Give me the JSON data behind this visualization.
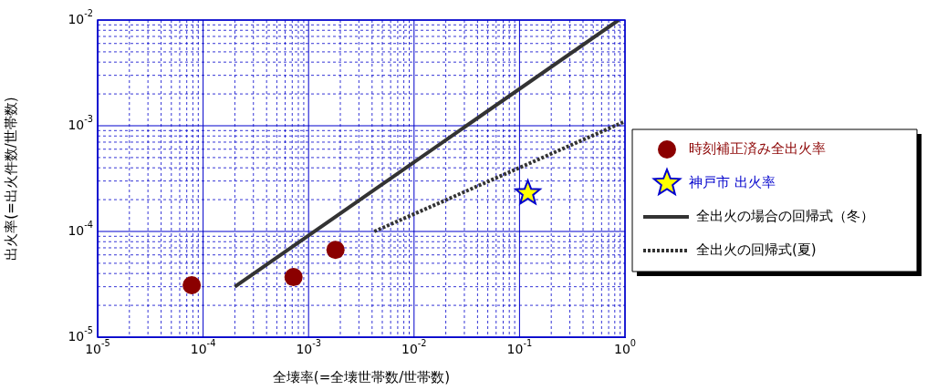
{
  "chart_data": {
    "type": "scatter",
    "xlabel": "全壊率(=全壊世帯数/世帯数)",
    "ylabel": "出火率(=出火件数/世帯数)",
    "log": "xy",
    "grid": true,
    "legend": "right",
    "xlim": [
      1e-05,
      1
    ],
    "ylim": [
      1e-05,
      0.01
    ],
    "xticks": [
      {
        "value": 1e-05,
        "label": "10$^{-5}$"
      },
      {
        "value": 2e-05,
        "label": null
      },
      {
        "value": 3e-05,
        "label": null
      },
      {
        "value": 4e-05,
        "label": null
      },
      {
        "value": 5e-05,
        "label": null
      },
      {
        "value": 6e-05,
        "label": null
      },
      {
        "value": 7e-05,
        "label": null
      },
      {
        "value": 8e-05,
        "label": null
      },
      {
        "value": 9e-05,
        "label": null
      },
      {
        "value": 0.0001,
        "label": "10$^{-4}$"
      },
      {
        "value": 0.0002,
        "label": null
      },
      {
        "value": 0.0003,
        "label": null
      },
      {
        "value": 0.0004,
        "label": null
      },
      {
        "value": 0.0005,
        "label": null
      },
      {
        "value": 0.0006,
        "label": null
      },
      {
        "value": 0.0007,
        "label": null
      },
      {
        "value": 0.0008,
        "label": null
      },
      {
        "value": 0.0009,
        "label": null
      },
      {
        "value": 0.001,
        "label": "10$^{-3}$"
      },
      {
        "value": 0.002,
        "label": null
      },
      {
        "value": 0.003,
        "label": null
      },
      {
        "value": 0.004,
        "label": null
      },
      {
        "value": 0.005,
        "label": null
      },
      {
        "value": 0.006,
        "label": null
      },
      {
        "value": 0.007,
        "label": null
      },
      {
        "value": 0.008,
        "label": null
      },
      {
        "value": 0.009,
        "label": null
      },
      {
        "value": 0.01,
        "label": "10$^{-2}$"
      },
      {
        "value": 0.02,
        "label": null
      },
      {
        "value": 0.03,
        "label": null
      },
      {
        "value": 0.04,
        "label": null
      },
      {
        "value": 0.05,
        "label": null
      },
      {
        "value": 0.06,
        "label": null
      },
      {
        "value": 0.07,
        "label": null
      },
      {
        "value": 0.08,
        "label": null
      },
      {
        "value": 0.09,
        "label": null
      },
      {
        "value": 0.1,
        "label": "10$^{-1}$"
      },
      {
        "value": 0.2,
        "label": null
      },
      {
        "value": 0.3,
        "label": null
      },
      {
        "value": 0.4,
        "label": null
      },
      {
        "value": 0.5,
        "label": null
      },
      {
        "value": 0.6,
        "label": null
      },
      {
        "value": 0.7,
        "label": null
      },
      {
        "value": 0.8,
        "label": null
      },
      {
        "value": 0.9,
        "label": null
      },
      {
        "value": 1,
        "label": "10$^{0}$"
      }
    ],
    "yticks": [
      {
        "value": 1e-05,
        "label": "10$^{-5}$"
      },
      {
        "value": 2e-05,
        "label": null
      },
      {
        "value": 3e-05,
        "label": null
      },
      {
        "value": 4e-05,
        "label": null
      },
      {
        "value": 5e-05,
        "label": null
      },
      {
        "value": 6e-05,
        "label": null
      },
      {
        "value": 7e-05,
        "label": null
      },
      {
        "value": 8e-05,
        "label": null
      },
      {
        "value": 9e-05,
        "label": null
      },
      {
        "value": 0.0001,
        "label": "10$^{-4}$"
      },
      {
        "value": 0.0002,
        "label": null
      },
      {
        "value": 0.0003,
        "label": null
      },
      {
        "value": 0.0004,
        "label": null
      },
      {
        "value": 0.0005,
        "label": null
      },
      {
        "value": 0.0006,
        "label": null
      },
      {
        "value": 0.0007,
        "label": null
      },
      {
        "value": 0.0008,
        "label": null
      },
      {
        "value": 0.0009,
        "label": null
      },
      {
        "value": 0.001,
        "label": "10$^{-3}$"
      },
      {
        "value": 0.002,
        "label": null
      },
      {
        "value": 0.003,
        "label": null
      },
      {
        "value": 0.004,
        "label": null
      },
      {
        "value": 0.005,
        "label": null
      },
      {
        "value": 0.006,
        "label": null
      },
      {
        "value": 0.007,
        "label": null
      },
      {
        "value": 0.008,
        "label": null
      },
      {
        "value": 0.009,
        "label": null
      },
      {
        "value": 0.01,
        "label": "10$^{-2}$"
      }
    ],
    "series": [
      {
        "name": "時刻補正済み全出火率",
        "marker": "circle",
        "color": "#8b0000",
        "x": [
          7.8e-05,
          0.00072,
          0.0018
        ],
        "values": [
          3.1e-05,
          3.7e-05,
          6.7e-05
        ]
      },
      {
        "name": "神戸市 出火率",
        "marker": "star",
        "color": "#ffff00",
        "x": [
          0.12
        ],
        "values": [
          0.00023
        ]
      },
      {
        "name": "全出火の場合の回帰式（冬）",
        "type": "line",
        "marker": "none",
        "line_style": "solid",
        "color": "#333333",
        "x": [
          0.0002,
          0.87
        ],
        "values": [
          3e-05,
          0.01
        ]
      },
      {
        "name": "全出火の回帰式(夏)",
        "type": "line",
        "marker": "none",
        "line_style": "dotted",
        "color": "#333333",
        "x": [
          0.0042,
          1
        ],
        "values": [
          0.0001,
          0.0011
        ]
      }
    ]
  }
}
